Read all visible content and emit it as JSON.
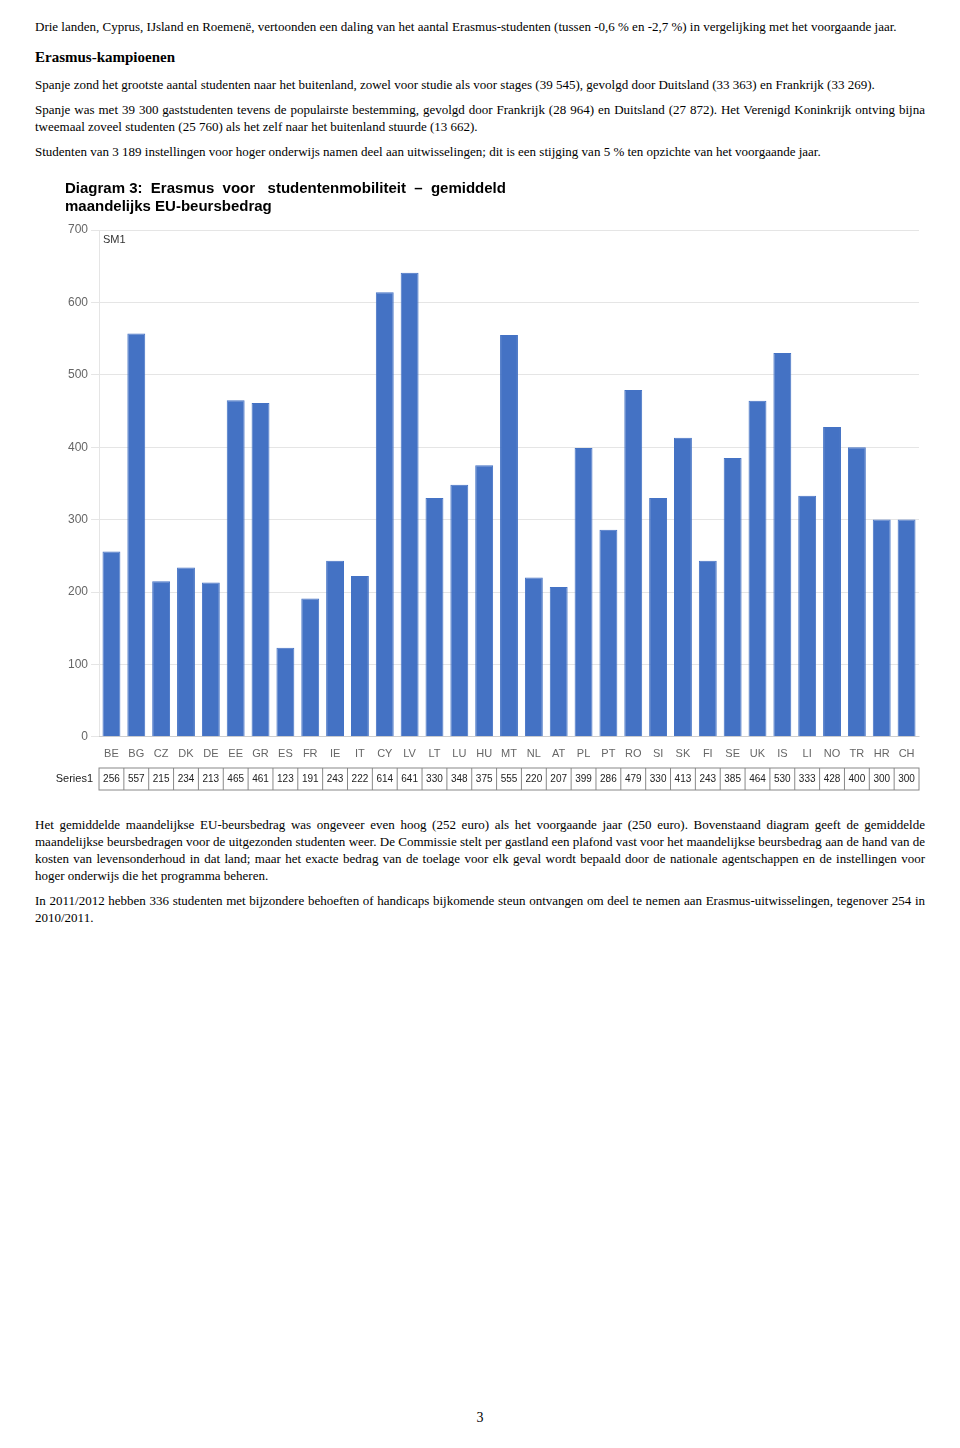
{
  "chart_data": {
    "type": "bar",
    "title": "Diagram 3:  Erasmus  voor   studentenmobiliteit  –  gemiddeld\nmaandelijks EU-beursbedrag",
    "categories": [
      "BE",
      "BG",
      "CZ",
      "DK",
      "DE",
      "EE",
      "GR",
      "ES",
      "FR",
      "IE",
      "IT",
      "CY",
      "LV",
      "LT",
      "LU",
      "HU",
      "MT",
      "NL",
      "AT",
      "PL",
      "PT",
      "RO",
      "SI",
      "SK",
      "FI",
      "SE",
      "UK",
      "IS",
      "LI",
      "NO",
      "TR",
      "HR",
      "CH"
    ],
    "series": [
      {
        "name": "Series1",
        "color": "#4472C4",
        "values": [
          256,
          557,
          215,
          234,
          213,
          465,
          461,
          123,
          191,
          243,
          222,
          614,
          641,
          330,
          348,
          375,
          555,
          220,
          207,
          399,
          286,
          479,
          330,
          413,
          243,
          385,
          464,
          530,
          333,
          428,
          400,
          300,
          300
        ]
      }
    ],
    "ylim": [
      0,
      700
    ],
    "yticks": [
      0,
      100,
      200,
      300,
      400,
      500,
      600,
      700
    ],
    "grid": true,
    "data_labels": true,
    "annotations": [
      "SM1"
    ]
  },
  "page": {
    "before": [
      {
        "paragraph": "Drie landen, Cyprus, IJsland en Roemenë, vertoonden een daling van het aantal Erasmus-studenten (tussen -0,6 % en -2,7 %) in vergelijking met het voorgaande jaar."
      },
      {
        "heading": "Erasmus-kampioenen"
      },
      {
        "paragraph": "Spanje zond het grootste aantal studenten naar het buitenland, zowel voor studie als voor stages (39 545), gevolgd door Duitsland (33 363) en Frankrijk (33 269)."
      },
      {
        "paragraph": "Spanje was met 39 300 gaststudenten tevens de populairste bestemming, gevolgd door Frankrijk (28 964) en Duitsland (27 872). Het Verenigd Koninkrijk ontving bijna tweemaal zoveel studenten (25 760) als het zelf naar het buitenland stuurde (13 662)."
      },
      {
        "paragraph": "Studenten van 3 189 instellingen voor hoger onderwijs namen deel aan uitwisselingen; dit is een stijging van 5 % ten opzichte van het voorgaande jaar."
      }
    ],
    "after": [
      {
        "paragraph": "Het gemiddelde maandelijkse EU-beursbedrag was ongeveer even hoog (252 euro) als het voorgaande jaar (250 euro). Bovenstaand diagram geeft de gemiddelde maandelijkse beursbedragen voor de uitgezonden studenten weer. De Commissie stelt per gastland een plafond vast voor het maandelijkse beursbedrag aan de hand van de kosten van levensonderhoud in dat land; maar het exacte bedrag van de toelage voor elk geval wordt bepaald door de nationale agentschappen en de instellingen voor hoger onderwijs die het programma beheren."
      },
      {
        "paragraph": "In 2011/2012 hebben 336 studenten met bijzondere behoeften of handicaps bijkomende steun ontvangen om deel te nemen aan Erasmus-uitwisselingen, tegenover 254 in 2010/2011."
      }
    ],
    "page_number": "3"
  }
}
